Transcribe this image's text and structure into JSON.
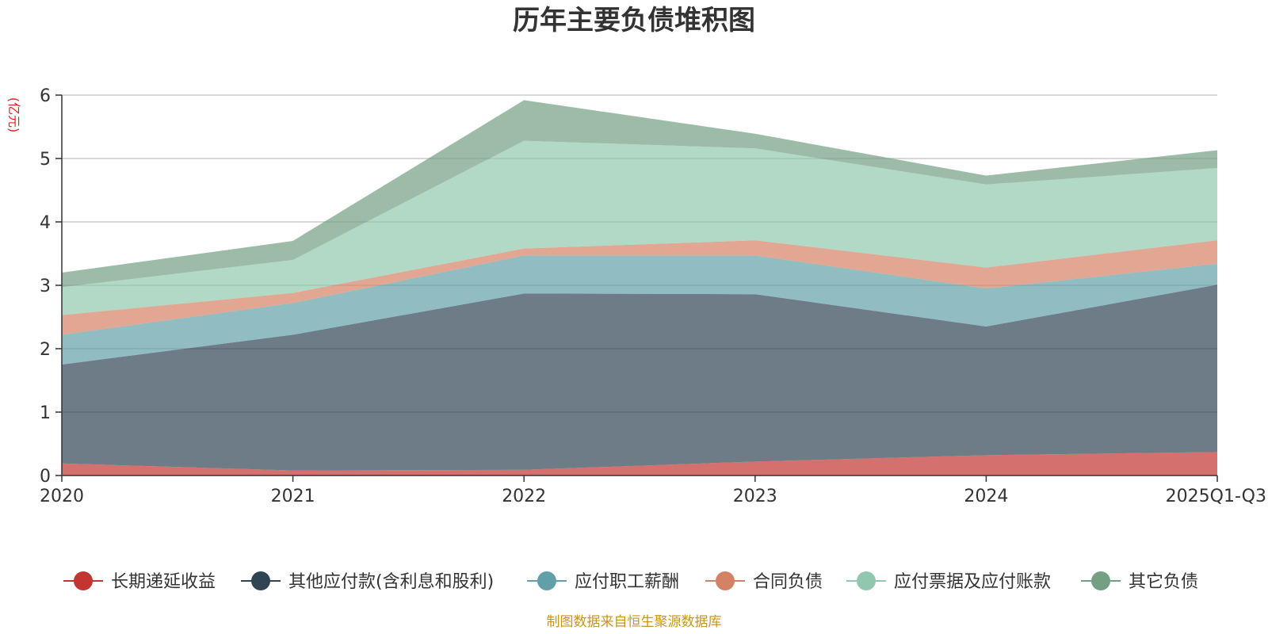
{
  "chart_data": {
    "type": "area",
    "stacked": true,
    "title": "历年主要负债堆积图",
    "unit_label": "(亿元)",
    "categories": [
      "2020",
      "2021",
      "2022",
      "2023",
      "2024",
      "2025Q1-Q3"
    ],
    "y_ticks": [
      "0",
      "1",
      "2",
      "3",
      "4",
      "5",
      "6"
    ],
    "ylim": [
      0,
      6
    ],
    "grid": true,
    "legend_position": "bottom",
    "series": [
      {
        "name": "长期递延收益",
        "color": "#c23531",
        "values": [
          0.19,
          0.08,
          0.09,
          0.22,
          0.32,
          0.37
        ]
      },
      {
        "name": "其他应付款(含利息和股利)",
        "color": "#2f4554",
        "values": [
          1.56,
          2.14,
          2.78,
          2.64,
          2.03,
          2.64
        ]
      },
      {
        "name": "应付职工薪酬",
        "color": "#61a0a8",
        "values": [
          0.47,
          0.5,
          0.6,
          0.61,
          0.6,
          0.33
        ]
      },
      {
        "name": "合同负债",
        "color": "#d48265",
        "values": [
          0.31,
          0.16,
          0.11,
          0.24,
          0.33,
          0.37
        ]
      },
      {
        "name": "应付票据及应付账款",
        "color": "#91c7ae",
        "values": [
          0.44,
          0.52,
          1.7,
          1.45,
          1.31,
          1.14
        ]
      },
      {
        "name": "其它负债",
        "color": "#749f83",
        "values": [
          0.23,
          0.3,
          0.64,
          0.23,
          0.14,
          0.28
        ]
      }
    ],
    "source": "制图数据来自恒生聚源数据库"
  }
}
